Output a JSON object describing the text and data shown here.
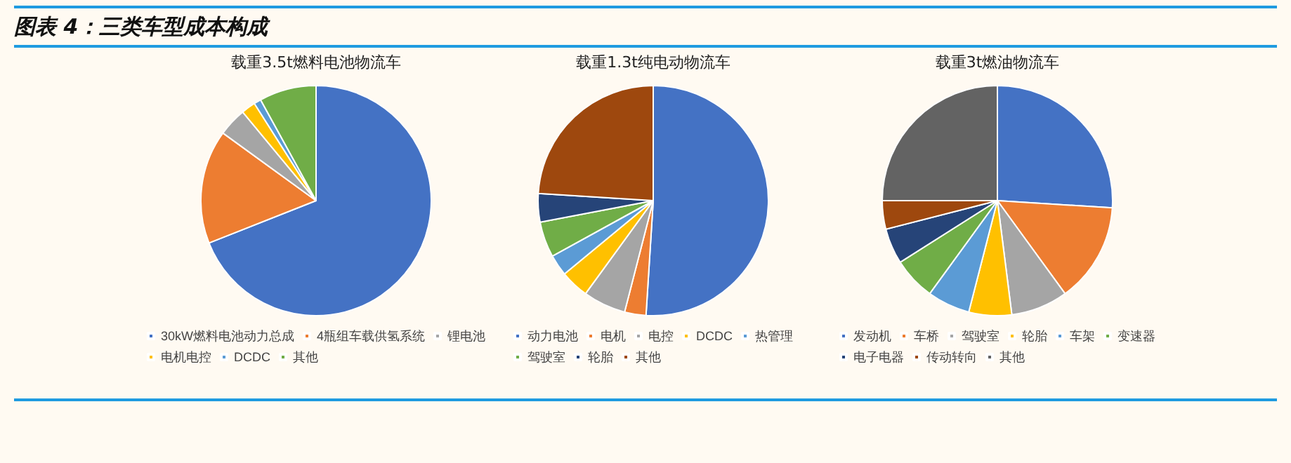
{
  "chart_data": [
    {
      "type": "pie",
      "title": "载重3.5t燃料电池物流车",
      "annotations": [
        "图表 4：三类车型成本构成"
      ],
      "legend": "bottom",
      "categories": [
        "30kW燃料电池动力总成",
        "4瓶组车载供氢系统",
        "锂电池",
        "电机电控",
        "DCDC",
        "其他"
      ],
      "values": [
        69,
        16,
        4,
        2,
        1,
        8
      ],
      "colors": [
        "#4472c4",
        "#ed7d31",
        "#a5a5a5",
        "#ffc000",
        "#5b9bd5",
        "#70ad47"
      ]
    },
    {
      "type": "pie",
      "title": "载重1.3t纯电动物流车",
      "legend": "bottom",
      "categories": [
        "动力电池",
        "电机",
        "电控",
        "DCDC",
        "热管理",
        "驾驶室",
        "轮胎",
        "其他"
      ],
      "values": [
        51,
        3,
        6,
        4,
        3,
        5,
        4,
        24
      ],
      "colors": [
        "#4472c4",
        "#ed7d31",
        "#a5a5a5",
        "#ffc000",
        "#5b9bd5",
        "#70ad47",
        "#264478",
        "#9e480e"
      ]
    },
    {
      "type": "pie",
      "title": "载重3t燃油物流车",
      "legend": "bottom",
      "categories": [
        "发动机",
        "车桥",
        "驾驶室",
        "轮胎",
        "车架",
        "变速器",
        "电子电器",
        "传动转向",
        "其他"
      ],
      "values": [
        26,
        14,
        8,
        6,
        6,
        6,
        5,
        4,
        25
      ],
      "colors": [
        "#4472c4",
        "#ed7d31",
        "#a5a5a5",
        "#ffc000",
        "#5b9bd5",
        "#70ad47",
        "#264478",
        "#9e480e",
        "#636363"
      ]
    }
  ]
}
